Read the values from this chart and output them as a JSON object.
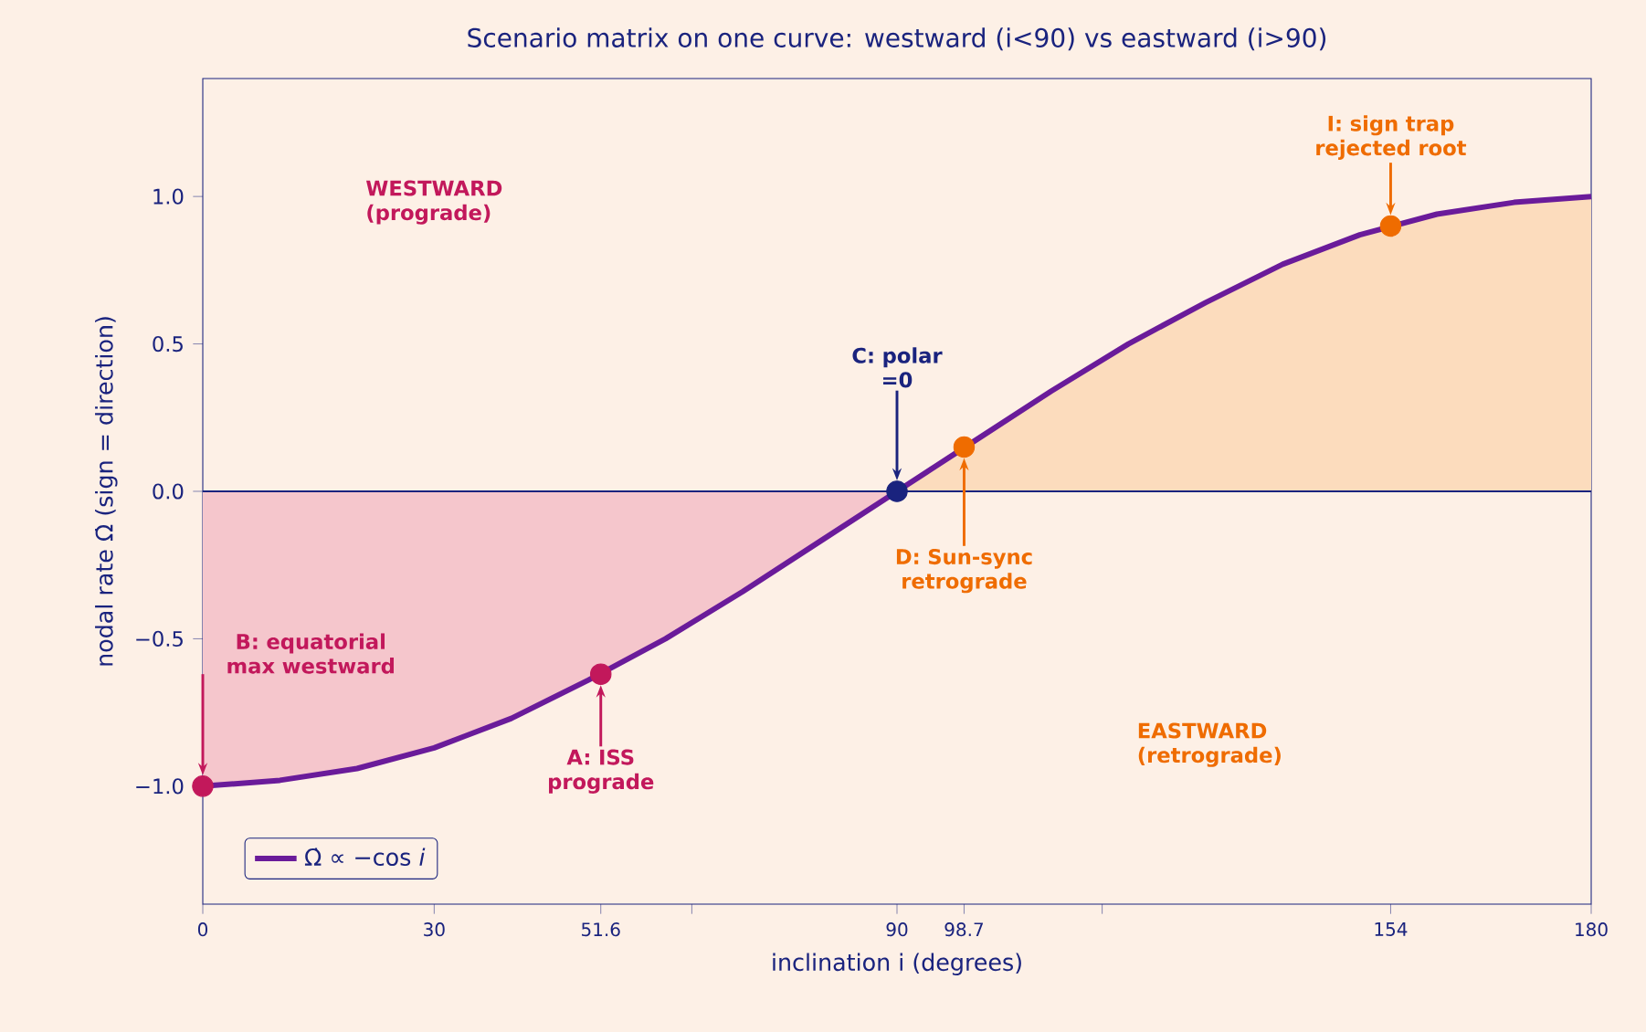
{
  "chart_data": {
    "type": "line",
    "title": "Scenario matrix on one curve:  westward (i<90) vs eastward (i>90)",
    "xlabel": "inclination  i  (degrees)",
    "ylabel": "nodal rate  Ω̇  (sign = direction)",
    "xlim": [
      0,
      180
    ],
    "ylim": [
      -1.4,
      1.4
    ],
    "xticks": [
      0,
      30,
      51.6,
      {
        "value": 63.4,
        "label": null
      },
      90,
      98.7,
      {
        "value": 116.6,
        "label": null
      },
      154,
      180
    ],
    "yticks": [
      {
        "value": -1.0,
        "label": "−1.0"
      },
      {
        "value": -0.5,
        "label": "−0.5"
      },
      {
        "value": 0.0,
        "label": "0.0"
      },
      {
        "value": 0.5,
        "label": "0.5"
      },
      {
        "value": 1.0,
        "label": "1.0"
      }
    ],
    "legend": "bottom left",
    "series": [
      {
        "type": "area",
        "color": "#f5c6cc",
        "x": [
          0,
          10,
          20,
          30,
          40,
          50,
          60,
          70,
          80,
          90
        ],
        "values": [
          -1,
          -0.98,
          -0.94,
          -0.87,
          -0.77,
          -0.64,
          -0.5,
          -0.34,
          -0.17,
          0
        ]
      },
      {
        "type": "area",
        "color": "#fcdcbd",
        "x": [
          90,
          100,
          110,
          120,
          130,
          140,
          150,
          160,
          170,
          180
        ],
        "values": [
          0,
          0.17,
          0.34,
          0.5,
          0.64,
          0.77,
          0.87,
          0.94,
          0.98,
          1
        ]
      },
      {
        "name": "Ω̇ ∝ −cos *i*",
        "color": "#6a1b9a",
        "x": [
          0,
          10,
          20,
          30,
          40,
          50,
          60,
          70,
          80,
          90,
          100,
          110,
          120,
          130,
          140,
          150,
          160,
          170,
          180
        ],
        "values": [
          -1,
          -0.98,
          -0.94,
          -0.87,
          -0.77,
          -0.64,
          -0.5,
          -0.34,
          -0.17,
          0,
          0.17,
          0.34,
          0.5,
          0.64,
          0.77,
          0.87,
          0.94,
          0.98,
          1
        ]
      },
      {
        "type": "scatter",
        "x": [
          0,
          51.6,
          90,
          98.7,
          154
        ],
        "values": [
          -1,
          -0.62,
          0,
          0.15,
          0.9
        ],
        "colors": [
          "#c2185b",
          "#c2185b",
          "#1a237e",
          "#ef6c00",
          "#ef6c00"
        ]
      }
    ],
    "ref_lines": [
      {
        "axis": "y",
        "value": 0,
        "color": "#1a237e"
      }
    ],
    "annotations": [
      "WESTWARD (prograde)",
      "EASTWARD (retrograde)",
      "B: equatorial max westward",
      "A: ISS prograde",
      "C: polar =0",
      "D: Sun-sync retrograde",
      "I: sign trap rejected root"
    ]
  }
}
